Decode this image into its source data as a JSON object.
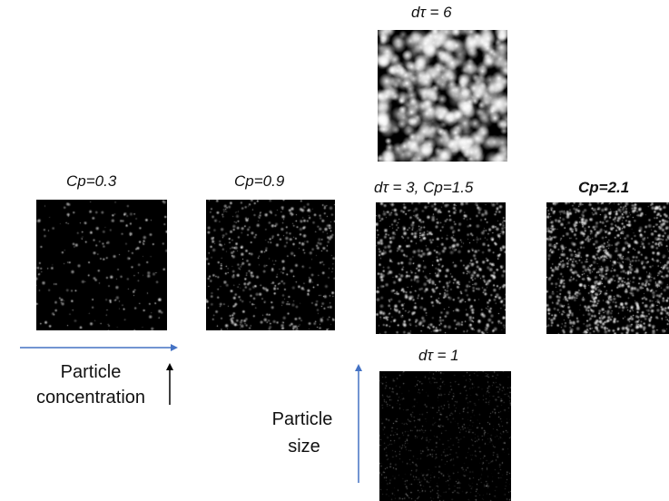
{
  "labels": {
    "top": "dτ = 6",
    "p1": "Cp=0.3",
    "p2": "Cp=0.9",
    "p3": "dτ = 3, Cp=1.5",
    "p4": "Cp=2.1",
    "bottom": "dτ = 1"
  },
  "annotations": {
    "concentration_line1": "Particle",
    "concentration_line2": "concentration",
    "size_line1": "Particle",
    "size_line2": "size"
  },
  "colors": {
    "arrow_blue": "#4472c4",
    "arrow_black": "#000000"
  }
}
